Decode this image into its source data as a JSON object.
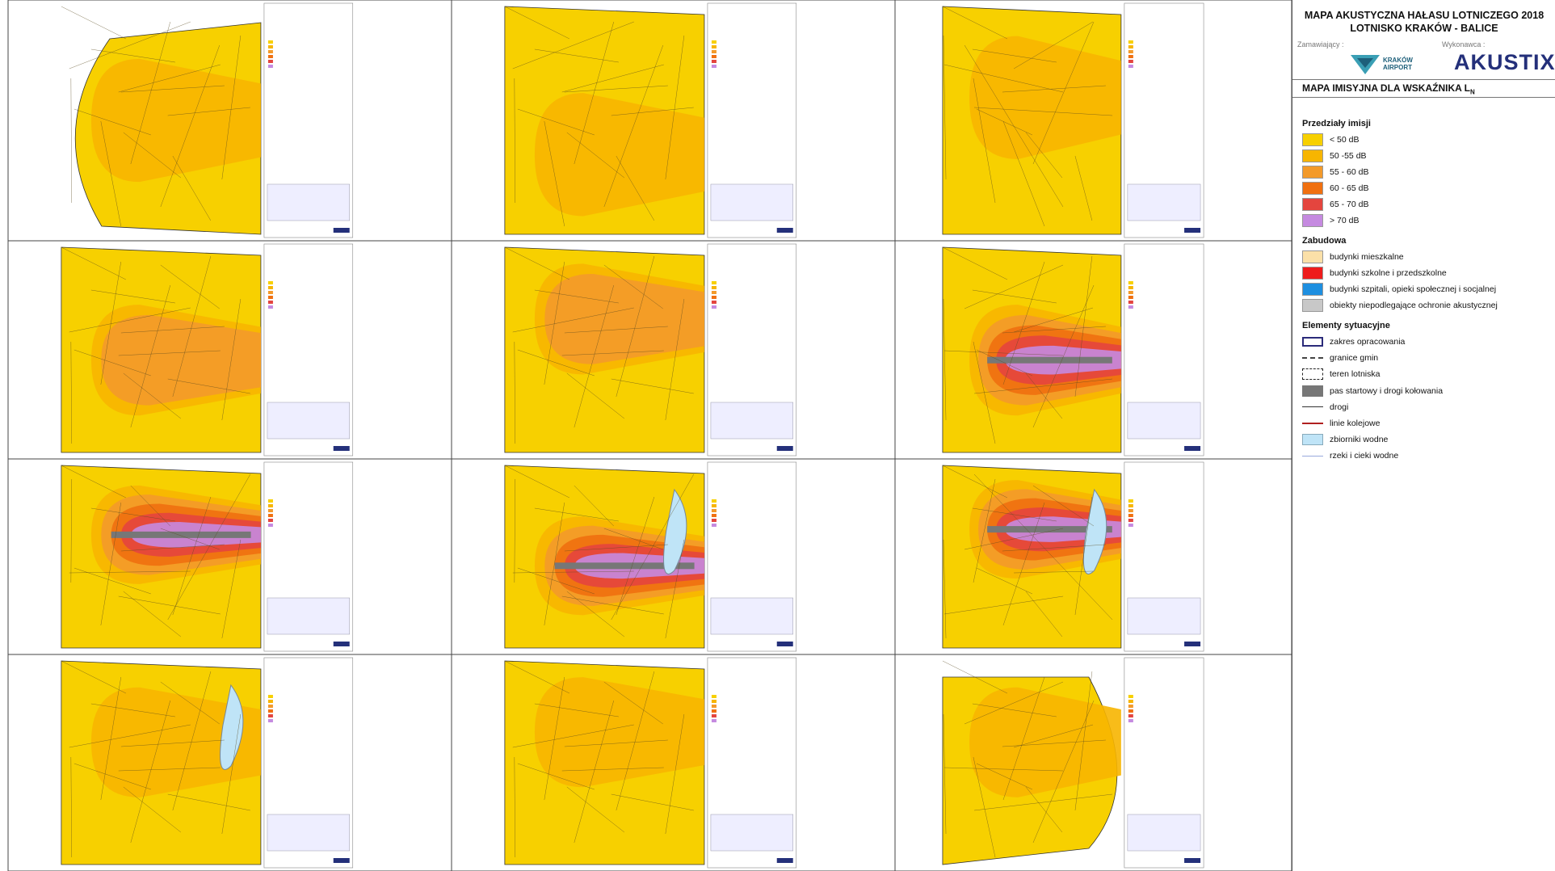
{
  "header": {
    "title_line1": "MAPA AKUSTYCZNA HAŁASU LOTNICZEGO 2018",
    "title_line2": "LOTNISKO KRAKÓW - BALICE",
    "client_label": "Zamawiający :",
    "contractor_label": "Wykonawca :",
    "client_logo": "KRAKÓW AIRPORT",
    "contractor_logo": "AKUSTIX"
  },
  "map_title": {
    "text": "MAPA IMISYJNA DLA WSKAŹNIKA L",
    "subscript": "N"
  },
  "ranges": {
    "title": "Przedziały imisji",
    "items": [
      {
        "label": "< 50 dB",
        "color": "#f7d000"
      },
      {
        "label": "50 -55 dB",
        "color": "#f7b500"
      },
      {
        "label": "55 - 60 dB",
        "color": "#f39a2a"
      },
      {
        "label": "60 - 65 dB",
        "color": "#f07010"
      },
      {
        "label": "65 - 70 dB",
        "color": "#e4453e"
      },
      {
        "label": "> 70 dB",
        "color": "#c58ae0"
      }
    ]
  },
  "buildings": {
    "title": "Zabudowa",
    "items": [
      {
        "label": "budynki mieszkalne",
        "color": "#fbe0a8"
      },
      {
        "label": "budynki szkolne i przedszkolne",
        "color": "#ee1c1c"
      },
      {
        "label": "budynki szpitali, opieki społecznej i socjalnej",
        "color": "#1e8fe0"
      },
      {
        "label": "obiekty niepodlegające ochronie akustycznej",
        "color": "#c8c8c8"
      }
    ]
  },
  "elements": {
    "title": "Elementy sytuacyjne",
    "items": [
      {
        "label": "zakres opracowania"
      },
      {
        "label": "granice gmin"
      },
      {
        "label": "teren lotniska"
      },
      {
        "label": "pas startowy i drogi kołowania"
      },
      {
        "label": "drogi"
      },
      {
        "label": "linie kolejowe"
      },
      {
        "label": "zbiorniki wodne"
      },
      {
        "label": "rzeki i cieki wodne"
      }
    ]
  }
}
